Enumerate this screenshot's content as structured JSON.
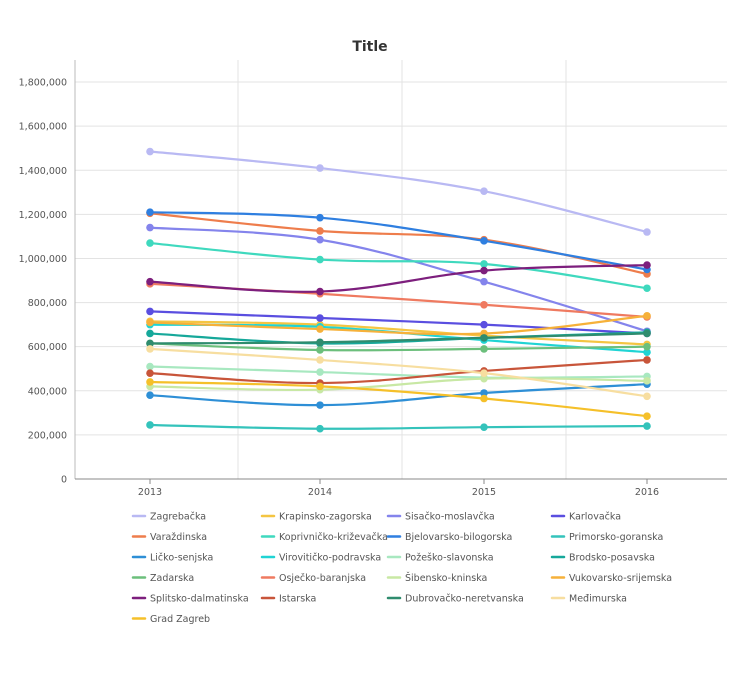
{
  "chart_data": {
    "type": "line",
    "title": "Title",
    "xlabel": "",
    "ylabel": "",
    "categories": [
      "2013",
      "2014",
      "2015",
      "2016"
    ],
    "ylim": [
      0,
      1900000
    ],
    "yticks": [
      0,
      200000,
      400000,
      600000,
      800000,
      1000000,
      1200000,
      1400000,
      1600000,
      1800000
    ],
    "ytick_labels": [
      "0",
      "200,000",
      "400,000",
      "600,000",
      "800,000",
      "1,000,000",
      "1,200,000",
      "1,400,000",
      "1,600,000",
      "1,800,000"
    ],
    "grid": true,
    "legend_position": "bottom",
    "series": [
      {
        "name": "Zagrebačka",
        "color": "#b9b9f3",
        "values": [
          1485000,
          1410000,
          1305000,
          1120000
        ]
      },
      {
        "name": "Krapinsko-zagorska",
        "color": "#f4c542",
        "values": [
          715000,
          700000,
          650000,
          610000
        ]
      },
      {
        "name": "Sisačko-moslavčka",
        "color": "#8484ec",
        "values": [
          1140000,
          1085000,
          895000,
          670000
        ]
      },
      {
        "name": "Karlovačka",
        "color": "#5a4ee0",
        "values": [
          760000,
          730000,
          700000,
          660000
        ]
      },
      {
        "name": "Varaždinska",
        "color": "#ee7d4c",
        "values": [
          1205000,
          1125000,
          1085000,
          930000
        ]
      },
      {
        "name": "Koprivničko-križevačka",
        "color": "#3fd9be",
        "values": [
          1070000,
          995000,
          975000,
          865000
        ]
      },
      {
        "name": "Bjelovarsko-bilogorska",
        "color": "#2f7fe0",
        "values": [
          1210000,
          1185000,
          1080000,
          950000
        ]
      },
      {
        "name": "Primorsko-goranska",
        "color": "#34c3bb",
        "values": [
          245000,
          228000,
          235000,
          240000
        ]
      },
      {
        "name": "Ličko-senjska",
        "color": "#2e8fd6",
        "values": [
          380000,
          335000,
          390000,
          430000
        ]
      },
      {
        "name": "Virovitičko-podravska",
        "color": "#20d4d4",
        "values": [
          700000,
          690000,
          630000,
          575000
        ]
      },
      {
        "name": "Požeško-slavonska",
        "color": "#a8e8c0",
        "values": [
          510000,
          485000,
          460000,
          465000
        ]
      },
      {
        "name": "Brodsko-posavska",
        "color": "#16a89a",
        "values": [
          660000,
          615000,
          640000,
          665000
        ]
      },
      {
        "name": "Zadarska",
        "color": "#6cbf7c",
        "values": [
          615000,
          585000,
          590000,
          600000
        ]
      },
      {
        "name": "Osječko-baranjska",
        "color": "#ef7a60",
        "values": [
          885000,
          840000,
          790000,
          735000
        ]
      },
      {
        "name": "Šibensko-kninska",
        "color": "#c8e8a4",
        "values": [
          420000,
          405000,
          455000,
          445000
        ]
      },
      {
        "name": "Vukovarsko-srijemska",
        "color": "#f6b13a",
        "values": [
          710000,
          680000,
          660000,
          740000
        ]
      },
      {
        "name": "Splitsko-dalmatinska",
        "color": "#7d1f7d",
        "values": [
          895000,
          850000,
          945000,
          970000
        ]
      },
      {
        "name": "Istarska",
        "color": "#c8553a",
        "values": [
          480000,
          435000,
          490000,
          540000
        ]
      },
      {
        "name": "Dubrovačko-neretvanska",
        "color": "#2f8c6e",
        "values": [
          615000,
          620000,
          640000,
          660000
        ]
      },
      {
        "name": "Međimurska",
        "color": "#f7dea0",
        "values": [
          590000,
          540000,
          480000,
          375000
        ]
      },
      {
        "name": "Grad Zagreb",
        "color": "#f5c02a",
        "values": [
          440000,
          420000,
          365000,
          285000
        ]
      }
    ]
  }
}
